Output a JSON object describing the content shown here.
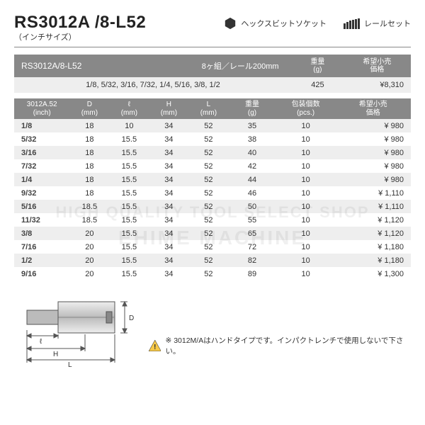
{
  "header": {
    "title": "RS3012A /8-L52",
    "subtitle": "（インチサイズ）",
    "label1": "ヘックスビットソケット",
    "label2": "レールセット"
  },
  "set_table": {
    "headers": {
      "code": "RS3012A/8-L52",
      "spec": "8ヶ組／レール200mm",
      "weight": "重量\n(g)",
      "price": "希望小売\n価格"
    },
    "row": {
      "sizes": "1/8, 5/32, 3/16, 7/32, 1/4, 5/16, 3/8, 1/2",
      "weight": "425",
      "price": "¥8,310"
    }
  },
  "main_table": {
    "columns": [
      "3012A.52\n(inch)",
      "D\n(mm)",
      "ℓ\n(mm)",
      "H\n(mm)",
      "L\n(mm)",
      "重量\n(g)",
      "包装個数\n(pcs.)",
      "希望小売\n価格"
    ],
    "rows": [
      [
        "1/8",
        "18",
        "10",
        "34",
        "52",
        "35",
        "10",
        "¥   980"
      ],
      [
        "5/32",
        "18",
        "15.5",
        "34",
        "52",
        "38",
        "10",
        "¥   980"
      ],
      [
        "3/16",
        "18",
        "15.5",
        "34",
        "52",
        "40",
        "10",
        "¥   980"
      ],
      [
        "7/32",
        "18",
        "15.5",
        "34",
        "52",
        "42",
        "10",
        "¥   980"
      ],
      [
        "1/4",
        "18",
        "15.5",
        "34",
        "52",
        "44",
        "10",
        "¥   980"
      ],
      [
        "9/32",
        "18",
        "15.5",
        "34",
        "52",
        "46",
        "10",
        "¥ 1,110"
      ],
      [
        "5/16",
        "18.5",
        "15.5",
        "34",
        "52",
        "50",
        "10",
        "¥ 1,110"
      ],
      [
        "11/32",
        "18.5",
        "15.5",
        "34",
        "52",
        "55",
        "10",
        "¥ 1,120"
      ],
      [
        "3/8",
        "20",
        "15.5",
        "34",
        "52",
        "65",
        "10",
        "¥ 1,120"
      ],
      [
        "7/16",
        "20",
        "15.5",
        "34",
        "52",
        "72",
        "10",
        "¥ 1,180"
      ],
      [
        "1/2",
        "20",
        "15.5",
        "34",
        "52",
        "82",
        "10",
        "¥ 1,180"
      ],
      [
        "9/16",
        "20",
        "15.5",
        "34",
        "52",
        "89",
        "10",
        "¥ 1,300"
      ]
    ],
    "shade_rows": [
      0,
      2,
      4,
      6,
      8,
      10
    ]
  },
  "warning": "※ 3012M/Aはハンドタイプです。インパクトレンチで使用しないで下さい。",
  "watermark": {
    "line1": "HIGH QUALITY TOOL SELECT SHOP",
    "line2": "EHIME MACHINE"
  },
  "colors": {
    "header_bg": "#888888",
    "shade_bg": "#eeeeee",
    "text": "#333333",
    "warn_fill": "#f7c948"
  }
}
